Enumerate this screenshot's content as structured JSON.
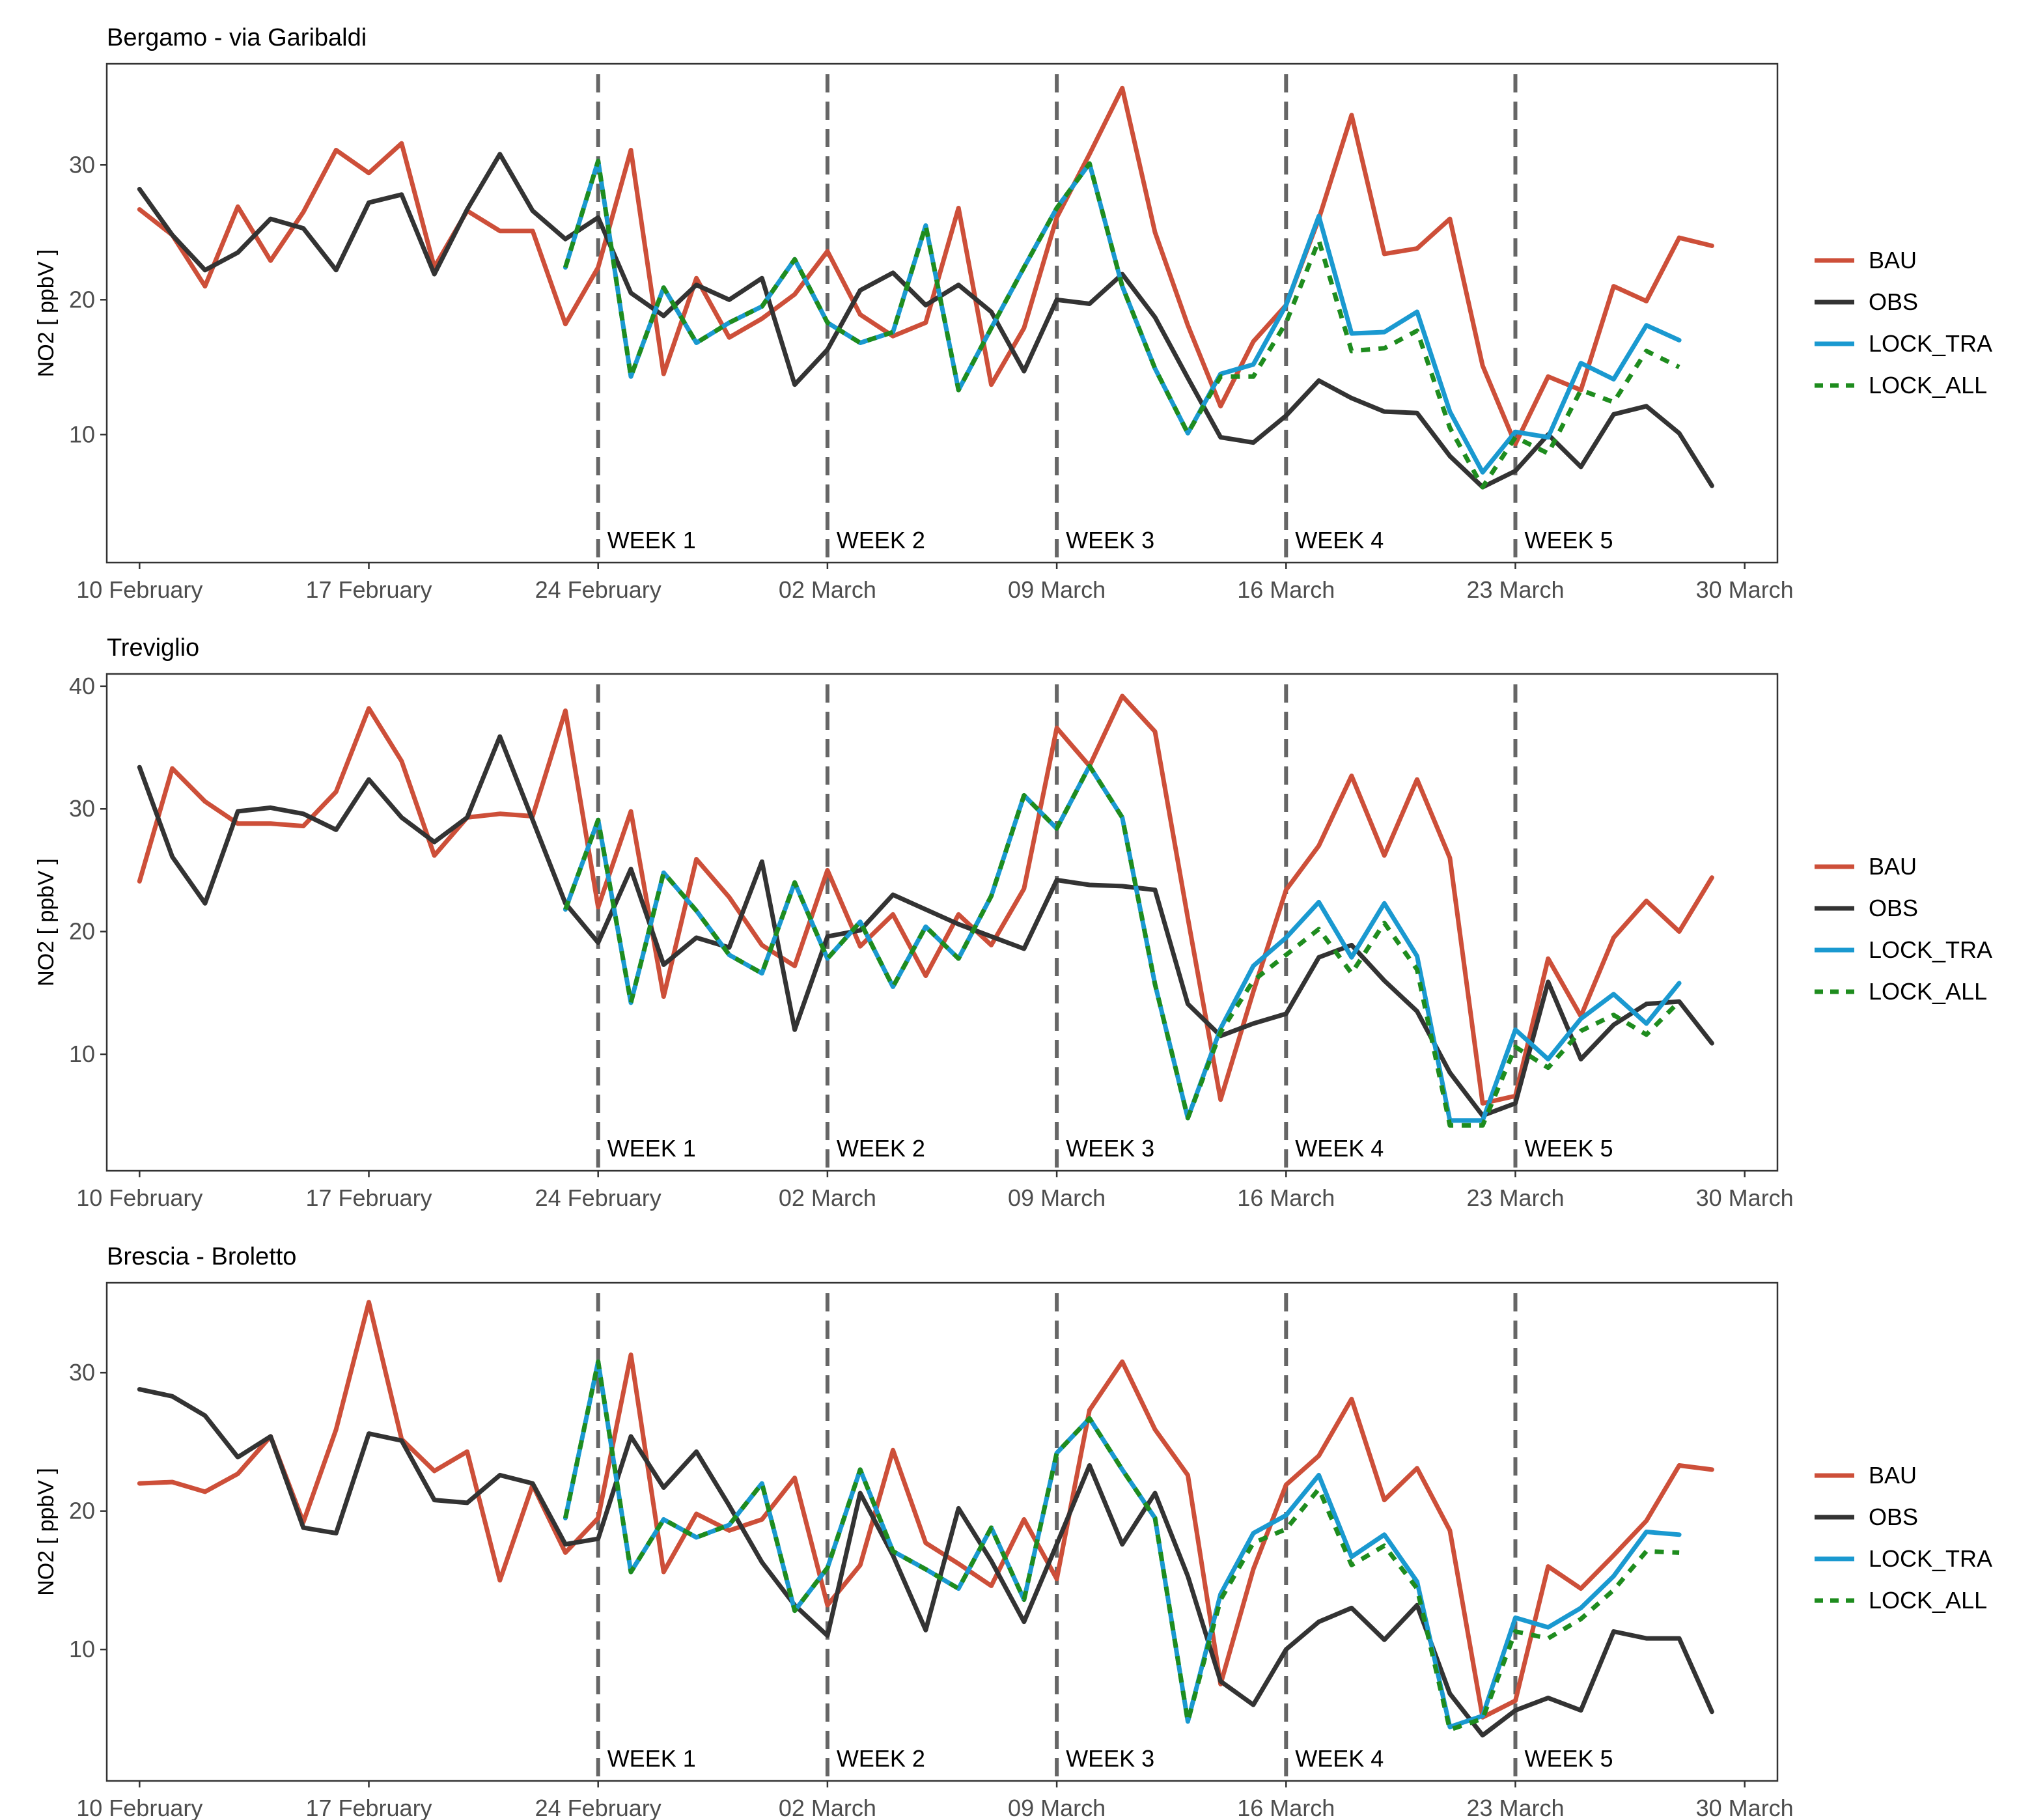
{
  "chart_data": [
    {
      "type": "line",
      "title": "Bergamo - via Garibaldi",
      "xlabel": "",
      "ylabel": "NO2  [ ppbV ]",
      "xlim": [
        "2020-02-09",
        "2020-03-31"
      ],
      "ylim": [
        0.5,
        37.5
      ],
      "x_ticks": [
        "10 February",
        "17 February",
        "24 February",
        "02 March",
        "09 March",
        "16 March",
        "23 March",
        "30 March"
      ],
      "y_ticks": [
        10,
        20,
        30
      ],
      "weeks": [
        {
          "label": "WEEK 1",
          "date": "2020-02-24"
        },
        {
          "label": "WEEK 2",
          "date": "2020-03-02"
        },
        {
          "label": "WEEK 3",
          "date": "2020-03-09"
        },
        {
          "label": "WEEK 4",
          "date": "2020-03-16"
        },
        {
          "label": "WEEK 5",
          "date": "2020-03-23"
        }
      ],
      "legend_position": "right",
      "series": [
        {
          "name": "BAU",
          "color": "#cd4f39",
          "dash": "solid",
          "start": "2020-02-10",
          "values": [
            26.7,
            24.8,
            21.0,
            26.9,
            22.9,
            26.5,
            31.1,
            29.4,
            31.6,
            22.4,
            26.6,
            25.1,
            25.1,
            18.2,
            22.4,
            31.1,
            14.5,
            21.6,
            17.2,
            18.6,
            20.4,
            23.6,
            18.9,
            17.3,
            18.3,
            26.8,
            13.7,
            17.9,
            26.1,
            30.8,
            35.7,
            25.0,
            18.1,
            12.1,
            16.9,
            19.6,
            26.0,
            33.7,
            23.4,
            23.8,
            26.0,
            15.1,
            9.3,
            14.3,
            13.3,
            21.0,
            19.9,
            24.6,
            24.0
          ]
        },
        {
          "name": "OBS",
          "color": "#333333",
          "dash": "solid",
          "start": "2020-02-10",
          "values": [
            28.2,
            24.8,
            22.2,
            23.5,
            26.0,
            25.3,
            22.2,
            27.2,
            27.8,
            21.9,
            26.7,
            30.8,
            26.6,
            24.5,
            26.1,
            20.5,
            18.8,
            21.1,
            20.0,
            21.6,
            13.7,
            16.3,
            20.7,
            22.0,
            19.6,
            21.1,
            19.1,
            14.7,
            20.0,
            19.7,
            21.9,
            18.7,
            14.2,
            9.8,
            9.4,
            11.4,
            14.0,
            12.7,
            11.7,
            11.6,
            8.4,
            6.1,
            7.3,
            10.0,
            7.6,
            11.5,
            12.1,
            10.1,
            6.2
          ]
        },
        {
          "name": "LOCK_TRA",
          "color": "#1a99d0",
          "dash": "solid",
          "start": "2020-02-23",
          "values": [
            22.4,
            30.3,
            14.3,
            20.9,
            16.8,
            18.3,
            19.5,
            23.0,
            18.3,
            16.8,
            17.6,
            25.5,
            13.3,
            17.9,
            22.4,
            26.8,
            30.1,
            21.0,
            14.9,
            10.1,
            14.5,
            15.2,
            19.6,
            26.2,
            17.5,
            17.6,
            19.1,
            11.7,
            7.2,
            10.2,
            9.8,
            15.3,
            14.1,
            18.1,
            17.0
          ]
        },
        {
          "name": "LOCK_ALL",
          "color": "#1e8c1e",
          "dash": "dashed",
          "start": "2020-02-23",
          "values": [
            22.4,
            30.3,
            14.3,
            20.9,
            16.8,
            18.3,
            19.5,
            23.0,
            18.3,
            16.8,
            17.6,
            25.5,
            13.3,
            17.9,
            22.4,
            26.8,
            30.1,
            21.0,
            14.9,
            10.1,
            14.3,
            14.3,
            18.3,
            24.4,
            16.2,
            16.4,
            17.7,
            10.5,
            6.1,
            9.8,
            8.6,
            13.3,
            12.4,
            16.2,
            15.0
          ]
        }
      ]
    },
    {
      "type": "line",
      "title": "Treviglio",
      "xlabel": "",
      "ylabel": "NO2  [ ppbV ]",
      "xlim": [
        "2020-02-09",
        "2020-03-31"
      ],
      "ylim": [
        0.5,
        41
      ],
      "x_ticks": [
        "10 February",
        "17 February",
        "24 February",
        "02 March",
        "09 March",
        "16 March",
        "23 March",
        "30 March"
      ],
      "y_ticks": [
        10,
        20,
        30,
        40
      ],
      "weeks": [
        {
          "label": "WEEK 1",
          "date": "2020-02-24"
        },
        {
          "label": "WEEK 2",
          "date": "2020-03-02"
        },
        {
          "label": "WEEK 3",
          "date": "2020-03-09"
        },
        {
          "label": "WEEK 4",
          "date": "2020-03-16"
        },
        {
          "label": "WEEK 5",
          "date": "2020-03-23"
        }
      ],
      "legend_position": "right",
      "series": [
        {
          "name": "BAU",
          "color": "#cd4f39",
          "dash": "solid",
          "start": "2020-02-10",
          "values": [
            24.1,
            33.3,
            30.6,
            28.8,
            28.8,
            28.6,
            31.4,
            38.2,
            33.9,
            26.2,
            29.3,
            29.6,
            29.4,
            38.0,
            22.0,
            29.8,
            14.7,
            25.9,
            22.8,
            18.9,
            17.2,
            25.0,
            18.8,
            21.4,
            16.4,
            21.4,
            18.9,
            23.5,
            36.6,
            33.5,
            39.2,
            36.3,
            21.1,
            6.3,
            15.1,
            23.4,
            27.0,
            32.7,
            26.2,
            32.4,
            26.0,
            6.0,
            6.6,
            17.8,
            13.1,
            19.5,
            22.5,
            20.0,
            24.4
          ]
        },
        {
          "name": "OBS",
          "color": "#333333",
          "dash": "solid",
          "start": "2020-02-10",
          "values": [
            33.4,
            26.1,
            22.3,
            29.8,
            30.1,
            29.6,
            28.3,
            32.4,
            29.3,
            27.3,
            29.3,
            35.9,
            29.1,
            22.3,
            19.1,
            25.1,
            17.3,
            19.5,
            18.7,
            25.7,
            12.0,
            19.6,
            20.1,
            23.0,
            21.8,
            20.6,
            19.6,
            18.6,
            24.2,
            23.8,
            23.7,
            23.4,
            14.1,
            11.5,
            12.5,
            13.3,
            17.9,
            18.9,
            16.0,
            13.5,
            8.5,
            5.0,
            6.0,
            15.9,
            9.6,
            12.4,
            14.1,
            14.3,
            10.9
          ]
        },
        {
          "name": "LOCK_TRA",
          "color": "#1a99d0",
          "dash": "solid",
          "start": "2020-02-23",
          "values": [
            21.8,
            29.1,
            14.2,
            24.8,
            21.7,
            18.1,
            16.6,
            24.0,
            17.8,
            20.8,
            15.5,
            20.4,
            17.8,
            22.9,
            31.1,
            28.4,
            33.5,
            29.3,
            15.7,
            4.8,
            12.1,
            17.2,
            19.5,
            22.4,
            17.9,
            22.3,
            18.0,
            4.6,
            4.6,
            12.0,
            9.6,
            12.9,
            14.9,
            12.5,
            15.8
          ]
        },
        {
          "name": "LOCK_ALL",
          "color": "#1e8c1e",
          "dash": "dashed",
          "start": "2020-02-23",
          "values": [
            21.8,
            29.1,
            14.2,
            24.8,
            21.7,
            18.1,
            16.6,
            24.0,
            17.8,
            20.8,
            15.5,
            20.4,
            17.8,
            22.9,
            31.1,
            28.4,
            33.5,
            29.3,
            15.7,
            4.8,
            11.8,
            16.0,
            18.1,
            20.2,
            16.6,
            20.7,
            16.9,
            4.2,
            4.2,
            10.6,
            8.9,
            11.9,
            13.2,
            11.6,
            14.3
          ]
        }
      ]
    },
    {
      "type": "line",
      "title": "Brescia - Broletto",
      "xlabel": "",
      "ylabel": "NO2  [ ppbV ]",
      "xlim": [
        "2020-02-09",
        "2020-03-31"
      ],
      "ylim": [
        0.5,
        36.5
      ],
      "x_ticks": [
        "10 February",
        "17 February",
        "24 February",
        "02 March",
        "09 March",
        "16 March",
        "23 March",
        "30 March"
      ],
      "y_ticks": [
        10,
        20,
        30
      ],
      "weeks": [
        {
          "label": "WEEK 1",
          "date": "2020-02-24"
        },
        {
          "label": "WEEK 2",
          "date": "2020-03-02"
        },
        {
          "label": "WEEK 3",
          "date": "2020-03-09"
        },
        {
          "label": "WEEK 4",
          "date": "2020-03-16"
        },
        {
          "label": "WEEK 5",
          "date": "2020-03-23"
        }
      ],
      "legend_position": "right",
      "series": [
        {
          "name": "BAU",
          "color": "#cd4f39",
          "dash": "solid",
          "start": "2020-02-10",
          "values": [
            22.0,
            22.1,
            21.4,
            22.7,
            25.4,
            19.2,
            25.9,
            35.1,
            25.2,
            22.9,
            24.3,
            15.0,
            21.9,
            17.0,
            19.5,
            31.3,
            15.6,
            19.8,
            18.6,
            19.4,
            22.4,
            13.2,
            16.1,
            24.4,
            17.7,
            16.2,
            14.6,
            19.4,
            15.1,
            27.3,
            30.8,
            25.9,
            22.6,
            7.5,
            15.8,
            21.9,
            24.0,
            28.1,
            20.8,
            23.1,
            18.6,
            5.1,
            6.3,
            16.0,
            14.4,
            16.8,
            19.3,
            23.3,
            23.0
          ]
        },
        {
          "name": "OBS",
          "color": "#333333",
          "dash": "solid",
          "start": "2020-02-10",
          "values": [
            28.8,
            28.3,
            26.9,
            23.9,
            25.4,
            18.8,
            18.4,
            25.6,
            25.1,
            20.8,
            20.6,
            22.6,
            22.0,
            17.6,
            18.0,
            25.4,
            21.7,
            24.3,
            20.4,
            16.3,
            13.2,
            11.0,
            21.3,
            16.8,
            11.4,
            20.2,
            16.4,
            12.0,
            17.6,
            23.3,
            17.6,
            21.3,
            15.3,
            7.7,
            6.0,
            10.0,
            12.0,
            13.0,
            10.7,
            13.2,
            6.8,
            3.8,
            5.6,
            6.5,
            5.6,
            11.3,
            10.8,
            10.8,
            5.5
          ]
        },
        {
          "name": "LOCK_TRA",
          "color": "#1a99d0",
          "dash": "solid",
          "start": "2020-02-23",
          "values": [
            19.5,
            30.8,
            15.6,
            19.4,
            18.1,
            19.0,
            22.0,
            12.8,
            15.9,
            23.0,
            17.1,
            15.8,
            14.4,
            18.8,
            13.6,
            24.2,
            26.7,
            23.0,
            19.5,
            4.8,
            14.0,
            18.4,
            19.7,
            22.6,
            16.7,
            18.3,
            14.9,
            4.4,
            5.2,
            12.3,
            11.6,
            13.0,
            15.3,
            18.5,
            18.3
          ]
        },
        {
          "name": "LOCK_ALL",
          "color": "#1e8c1e",
          "dash": "dashed",
          "start": "2020-02-23",
          "values": [
            19.5,
            30.8,
            15.6,
            19.4,
            18.1,
            19.0,
            22.0,
            12.8,
            15.9,
            23.0,
            17.1,
            15.8,
            14.4,
            18.8,
            13.6,
            24.2,
            26.7,
            23.0,
            19.5,
            4.8,
            13.6,
            17.7,
            18.7,
            21.6,
            16.1,
            17.5,
            14.4,
            4.2,
            5.0,
            11.3,
            10.8,
            12.2,
            14.3,
            17.1,
            17.0
          ]
        }
      ]
    }
  ]
}
